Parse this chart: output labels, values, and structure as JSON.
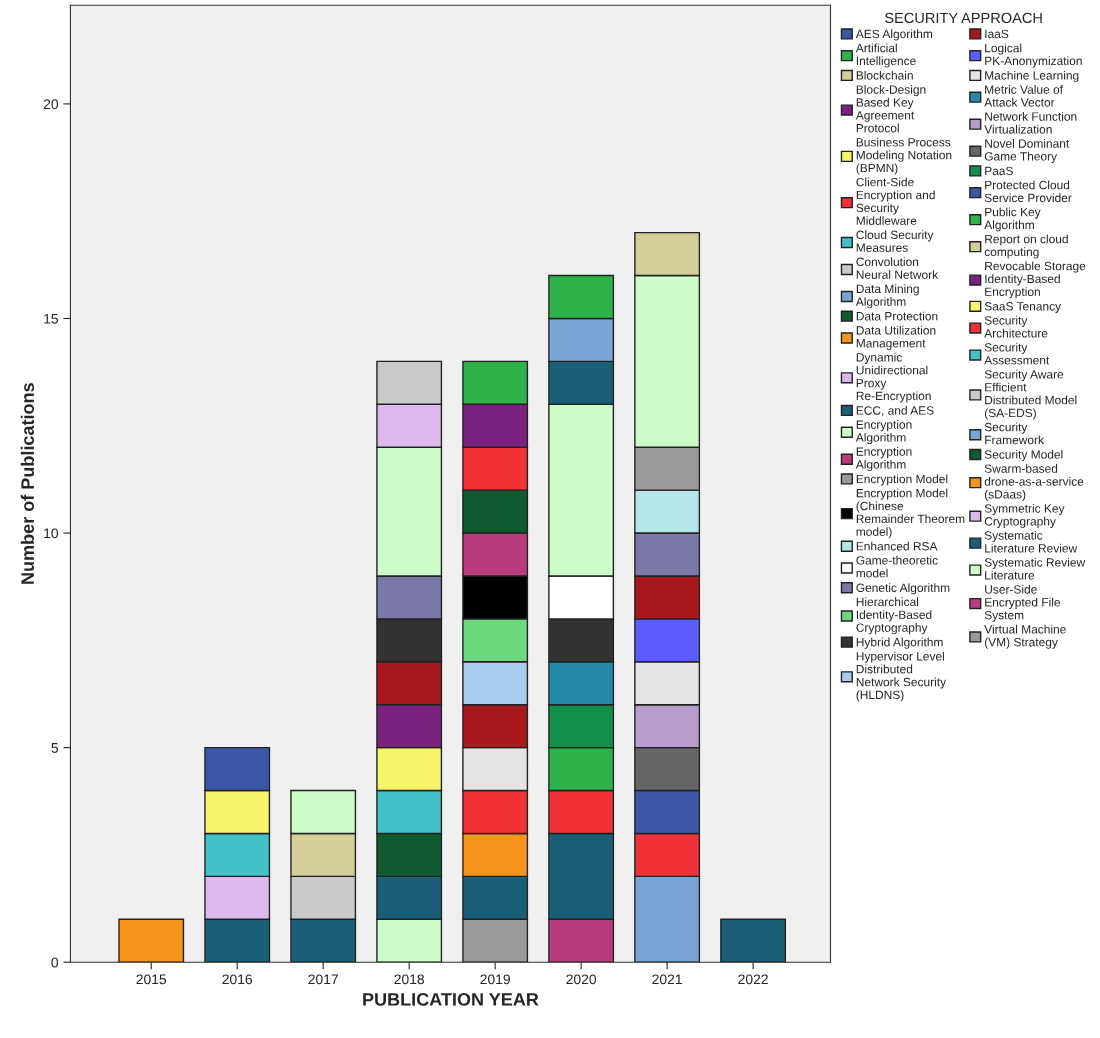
{
  "chart_data": {
    "type": "bar",
    "stacked": true,
    "xlabel": "PUBLICATION YEAR",
    "ylabel": "Number of Publications",
    "legend_title": "SECURITY APPROACH",
    "legend": "right",
    "grid": false,
    "categories": [
      "2015",
      "2016",
      "2017",
      "2018",
      "2019",
      "2020",
      "2021",
      "2022"
    ],
    "ylim": [
      0,
      22.3
    ],
    "yticks": [
      0,
      5,
      10,
      15,
      20
    ],
    "series": [
      {
        "name": "Virtual Machine (VM) Strategy",
        "color": "#9a9a9a",
        "values": [
          null,
          null,
          null,
          null,
          1,
          null,
          null,
          null
        ]
      },
      {
        "name": "User-Side Encrypted File System",
        "color": "#b83c7e",
        "values": [
          null,
          null,
          null,
          null,
          null,
          1,
          null,
          null
        ]
      },
      {
        "name": "Systematic Review Literature",
        "color": "#ccfcc8",
        "values": [
          null,
          null,
          null,
          1,
          null,
          null,
          null,
          null
        ]
      },
      {
        "name": "Systematic Literature Review",
        "color": "#1b5e78",
        "values": [
          null,
          1,
          1,
          1,
          1,
          2,
          null,
          1
        ]
      },
      {
        "name": "Symmetric Key Cryptography",
        "color": "#dcb8ee",
        "values": [
          null,
          1,
          null,
          null,
          null,
          null,
          null,
          null
        ]
      },
      {
        "name": "Swarm-based drone-as-a-service (sDaas)",
        "color": "#f7941d",
        "values": [
          null,
          null,
          null,
          null,
          1,
          null,
          null,
          null
        ]
      },
      {
        "name": "Security Model",
        "color": "#0f5a2e",
        "values": [
          null,
          null,
          null,
          1,
          null,
          null,
          null,
          null
        ]
      },
      {
        "name": "Security Framework",
        "color": "#7aa6d6",
        "values": [
          null,
          null,
          null,
          null,
          null,
          null,
          2,
          null
        ]
      },
      {
        "name": "Security Aware Efficient Distributed Model (SA-EDS)",
        "color": "#c9c9c9",
        "values": [
          null,
          null,
          1,
          null,
          null,
          null,
          null,
          null
        ]
      },
      {
        "name": "Security Assessment",
        "color": "#44c0c8",
        "values": [
          null,
          null,
          null,
          1,
          null,
          null,
          null,
          null
        ]
      },
      {
        "name": "Security Architecture",
        "color": "#f03238",
        "values": [
          null,
          null,
          null,
          null,
          1,
          1,
          1,
          null
        ]
      },
      {
        "name": "SaaS Tenancy",
        "color": "#f7f36a",
        "values": [
          null,
          null,
          null,
          1,
          null,
          null,
          null,
          null
        ]
      },
      {
        "name": "Revocable Storage Identity-Based Encryption",
        "color": "#7b2280",
        "values": [
          null,
          null,
          null,
          1,
          null,
          null,
          null,
          null
        ]
      },
      {
        "name": "Report on cloud computing",
        "color": "#d4cf98",
        "values": [
          null,
          null,
          1,
          null,
          null,
          null,
          null,
          null
        ]
      },
      {
        "name": "Public Key Algorithm",
        "color": "#2db34a",
        "values": [
          null,
          null,
          null,
          null,
          null,
          1,
          null,
          null
        ]
      },
      {
        "name": "Protected Cloud Service Provider",
        "color": "#3d57a8",
        "values": [
          null,
          null,
          null,
          null,
          null,
          null,
          1,
          null
        ]
      },
      {
        "name": "PaaS",
        "color": "#13904a",
        "values": [
          null,
          null,
          null,
          null,
          null,
          1,
          null,
          null
        ]
      },
      {
        "name": "Novel Dominant Game Theory",
        "color": "#666666",
        "values": [
          null,
          null,
          null,
          null,
          null,
          null,
          1,
          null
        ]
      },
      {
        "name": "Network Function Virtualization",
        "color": "#b79cce",
        "values": [
          null,
          null,
          null,
          null,
          null,
          null,
          1,
          null
        ]
      },
      {
        "name": "Metric Value of Attack Vector",
        "color": "#238aab",
        "values": [
          null,
          null,
          null,
          null,
          null,
          1,
          null,
          null
        ]
      },
      {
        "name": "Machine Learning",
        "color": "#e4e4e4",
        "values": [
          null,
          null,
          null,
          null,
          1,
          null,
          1,
          null
        ]
      },
      {
        "name": "Logical PK-Anonymization",
        "color": "#5c5cff",
        "values": [
          null,
          null,
          null,
          null,
          null,
          null,
          1,
          null
        ]
      },
      {
        "name": "IaaS",
        "color": "#a8181c",
        "values": [
          null,
          null,
          null,
          1,
          1,
          null,
          1,
          null
        ]
      },
      {
        "name": "Hypervisor Level Distributed Network Security (HLDNS)",
        "color": "#a8ccee",
        "values": [
          null,
          null,
          null,
          null,
          1,
          null,
          null,
          null
        ]
      },
      {
        "name": "Hybrid Algorithm",
        "color": "#333333",
        "values": [
          null,
          null,
          null,
          1,
          null,
          1,
          null,
          null
        ]
      },
      {
        "name": "Hierarchical Identity-Based Cryptography",
        "color": "#6ed87e",
        "values": [
          null,
          null,
          null,
          null,
          1,
          null,
          null,
          null
        ]
      },
      {
        "name": "Genetic Algorithm",
        "color": "#7a78a8",
        "values": [
          null,
          null,
          null,
          1,
          null,
          null,
          1,
          null
        ]
      },
      {
        "name": "Game-theoretic model",
        "color": "#ffffff",
        "values": [
          null,
          null,
          null,
          null,
          null,
          1,
          null,
          null
        ]
      },
      {
        "name": "Enhanced RSA",
        "color": "#b4e6e8",
        "values": [
          null,
          null,
          null,
          null,
          null,
          null,
          1,
          null
        ]
      },
      {
        "name": "Encryption Model (Chinese Remainder Theorem model)",
        "color": "#000000",
        "values": [
          null,
          null,
          null,
          null,
          1,
          null,
          null,
          null
        ]
      },
      {
        "name": "Encryption Model",
        "color": "#9a9a9a",
        "values": [
          null,
          null,
          null,
          null,
          null,
          null,
          1,
          null
        ]
      },
      {
        "name": "Encryption Algorithm",
        "color": "#b83c7e",
        "values": [
          null,
          null,
          null,
          null,
          1,
          null,
          null,
          null
        ]
      },
      {
        "name": "Encryption Algorithm",
        "color": "#ccfcc8",
        "values": [
          null,
          null,
          1,
          3,
          null,
          4,
          4,
          null
        ]
      },
      {
        "name": "ECC, and AES",
        "color": "#1b5e78",
        "values": [
          null,
          null,
          null,
          null,
          null,
          1,
          null,
          null
        ]
      },
      {
        "name": "Dynamic Unidirectional Proxy Re-Encryption",
        "color": "#dcb8ee",
        "values": [
          null,
          null,
          null,
          1,
          null,
          null,
          null,
          null
        ]
      },
      {
        "name": "Data Utilization Management",
        "color": "#f7941d",
        "values": [
          1,
          null,
          null,
          null,
          null,
          null,
          null,
          null
        ]
      },
      {
        "name": "Data Protection",
        "color": "#0f5a2e",
        "values": [
          null,
          null,
          null,
          null,
          1,
          null,
          null,
          null
        ]
      },
      {
        "name": "Data Mining Algorithm",
        "color": "#7aa6d6",
        "values": [
          null,
          null,
          null,
          null,
          null,
          1,
          null,
          null
        ]
      },
      {
        "name": "Convolution Neural Network",
        "color": "#c9c9c9",
        "values": [
          null,
          null,
          null,
          1,
          null,
          null,
          null,
          null
        ]
      },
      {
        "name": "Cloud Security Measures",
        "color": "#44c0c8",
        "values": [
          null,
          1,
          null,
          null,
          null,
          null,
          null,
          null
        ]
      },
      {
        "name": "Client-Side Encryption and Security Middleware",
        "color": "#f03238",
        "values": [
          null,
          null,
          null,
          null,
          1,
          null,
          null,
          null
        ]
      },
      {
        "name": "Business Process Modeling Notation (BPMN)",
        "color": "#f7f36a",
        "values": [
          null,
          1,
          null,
          null,
          null,
          null,
          null,
          null
        ]
      },
      {
        "name": "Block-Design Based Key Agreement Protocol",
        "color": "#7b2280",
        "values": [
          null,
          null,
          null,
          null,
          1,
          null,
          null,
          null
        ]
      },
      {
        "name": "Blockchain",
        "color": "#d4cf98",
        "values": [
          null,
          null,
          null,
          null,
          null,
          null,
          1,
          null
        ]
      },
      {
        "name": "Artificial Intelligence",
        "color": "#2db34a",
        "values": [
          null,
          null,
          null,
          null,
          1,
          1,
          null,
          null
        ]
      },
      {
        "name": "AES Algorithm",
        "color": "#3d57a8",
        "values": [
          null,
          1,
          null,
          null,
          null,
          null,
          null,
          null
        ]
      }
    ]
  }
}
